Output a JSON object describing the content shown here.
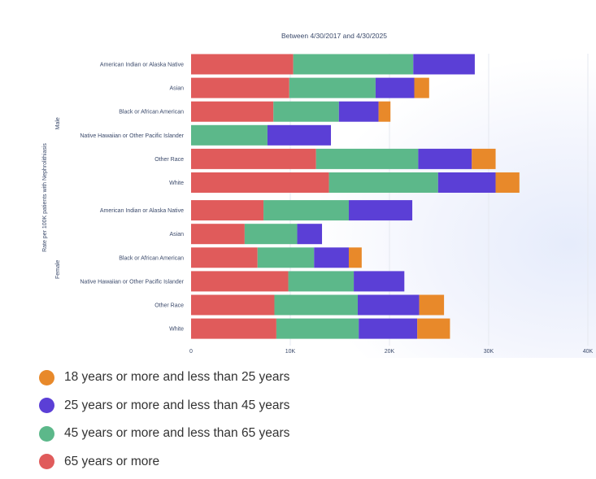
{
  "chart_data": {
    "type": "bar",
    "orientation": "horizontal",
    "stacked": true,
    "subtitle": "Between 4/30/2017 and 4/30/2025",
    "ylabel": "Rate per 100K patients with Nephrolithiasis",
    "xlim": [
      0,
      40000
    ],
    "x_ticks": [
      {
        "value": 0,
        "label": "0"
      },
      {
        "value": 10000,
        "label": "10K"
      },
      {
        "value": 20000,
        "label": "20K"
      },
      {
        "value": 30000,
        "label": "30K"
      },
      {
        "value": 40000,
        "label": "40K"
      }
    ],
    "grid": "vertical",
    "legend_position": "bottom",
    "groups": [
      {
        "name": "Male",
        "categories": [
          "American Indian or Alaska Native",
          "Asian",
          "Black or African American",
          "Native Hawaiian or Other Pacific Islander",
          "Other Race",
          "White"
        ]
      },
      {
        "name": "Female",
        "categories": [
          "American Indian or Alaska Native",
          "Asian",
          "Black or African American",
          "Native Hawaiian or Other Pacific Islander",
          "Other Race",
          "White"
        ]
      }
    ],
    "series": [
      {
        "name": "65 years or more",
        "color": "#e05b5b",
        "values": [
          10300,
          9900,
          8300,
          0,
          12600,
          13900,
          7300,
          5400,
          6700,
          9800,
          8400,
          8600
        ]
      },
      {
        "name": "45 years or more and less than 65 years",
        "color": "#5cb88a",
        "values": [
          12100,
          8700,
          6600,
          7700,
          10300,
          11000,
          8600,
          5300,
          5700,
          6600,
          8400,
          8300
        ]
      },
      {
        "name": "25 years or more and less than 45 years",
        "color": "#5b3fd6",
        "values": [
          6200,
          3900,
          4000,
          6400,
          5400,
          5800,
          6400,
          2500,
          3500,
          5100,
          6200,
          5900
        ]
      },
      {
        "name": "18 years or more and less than 25 years",
        "color": "#e8892a",
        "values": [
          0,
          1500,
          1200,
          0,
          2400,
          2400,
          0,
          0,
          1300,
          0,
          2500,
          3300
        ]
      }
    ]
  },
  "legend": [
    {
      "label": "18 years or more and less than 25 years",
      "color": "#e8892a"
    },
    {
      "label": "25 years or more and less than 45 years",
      "color": "#5b3fd6"
    },
    {
      "label": "45 years or more and less than 65 years",
      "color": "#5cb88a"
    },
    {
      "label": "65 years or more",
      "color": "#e05b5b"
    }
  ]
}
